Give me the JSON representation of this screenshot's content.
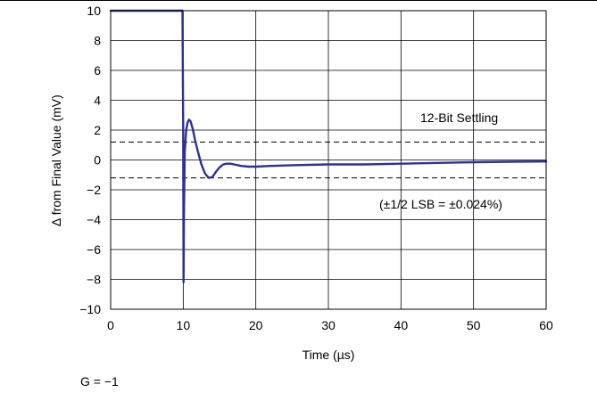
{
  "chart_data": {
    "type": "line",
    "xlabel": "Time (µs)",
    "ylabel": "∆ from Final Value (mV)",
    "xlim": [
      0,
      60
    ],
    "ylim": [
      -10,
      10
    ],
    "x_ticks": [
      "0",
      "10",
      "20",
      "30",
      "40",
      "50",
      "60"
    ],
    "y_ticks": [
      "10",
      "8",
      "6",
      "4",
      "2",
      "0",
      "−2",
      "−4",
      "−6",
      "−8",
      "−10"
    ],
    "grid": true,
    "line_color": "#2e3192",
    "dashed_levels": [
      1.2,
      -1.2
    ],
    "series": [
      {
        "x": [
          0,
          9.8,
          9.9,
          10.0,
          10.05,
          10.1,
          10.2,
          10.4,
          10.6,
          10.8,
          11.0,
          11.3,
          11.6,
          12.0,
          12.5,
          13.0,
          13.5,
          14.0,
          14.5,
          15.0,
          15.5,
          16.0,
          16.5,
          17.0,
          18.0,
          19.0,
          20.0,
          22.0,
          25.0,
          30.0,
          35.0,
          40.0,
          45.0,
          50.0,
          55.0,
          60.0
        ],
        "y": [
          10,
          10,
          10,
          2,
          -8.2,
          -4,
          0.5,
          2.0,
          2.5,
          2.7,
          2.6,
          2.1,
          1.4,
          0.6,
          -0.3,
          -0.9,
          -1.2,
          -1.15,
          -0.8,
          -0.5,
          -0.3,
          -0.25,
          -0.25,
          -0.3,
          -0.4,
          -0.45,
          -0.45,
          -0.4,
          -0.35,
          -0.3,
          -0.3,
          -0.25,
          -0.2,
          -0.15,
          -0.12,
          -0.1
        ]
      }
    ],
    "annotations": {
      "settling_label": "12-Bit Settling",
      "lsb_label": "(±1/2 LSB = ±0.024%)",
      "gain_label": "G = −1"
    }
  }
}
